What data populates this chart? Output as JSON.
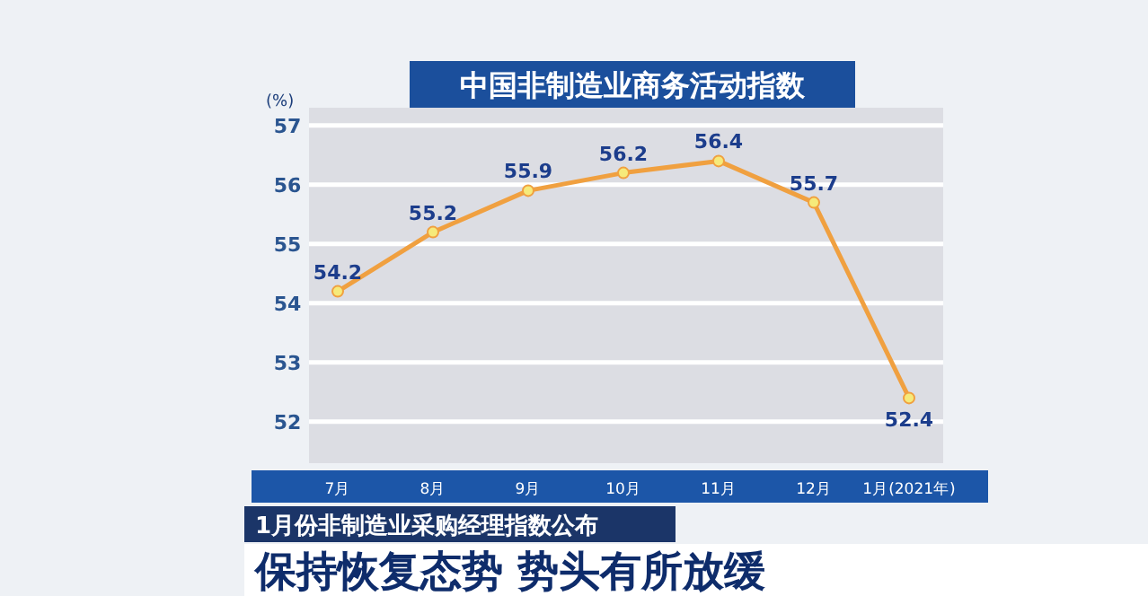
{
  "chart_data": {
    "type": "line",
    "title": "中国非制造业商务活动指数",
    "ylabel": "(%)",
    "categories": [
      "7月",
      "8月",
      "9月",
      "10月",
      "11月",
      "12月",
      "1月(2021年)"
    ],
    "series": [
      {
        "color": "#f0a040",
        "values": [
          54.2,
          55.2,
          55.9,
          56.2,
          56.4,
          55.7,
          52.4
        ]
      }
    ],
    "ylim": [
      51.3,
      57.3
    ],
    "yticks": [
      52,
      53,
      54,
      55,
      56,
      57
    ],
    "grid": "y",
    "marker": "circle",
    "line_style": "solid",
    "data_labels": true,
    "annotations": [
      "1月份非制造业采购经理指数公布",
      "保持恢复态势 势头有所放缓"
    ]
  }
}
